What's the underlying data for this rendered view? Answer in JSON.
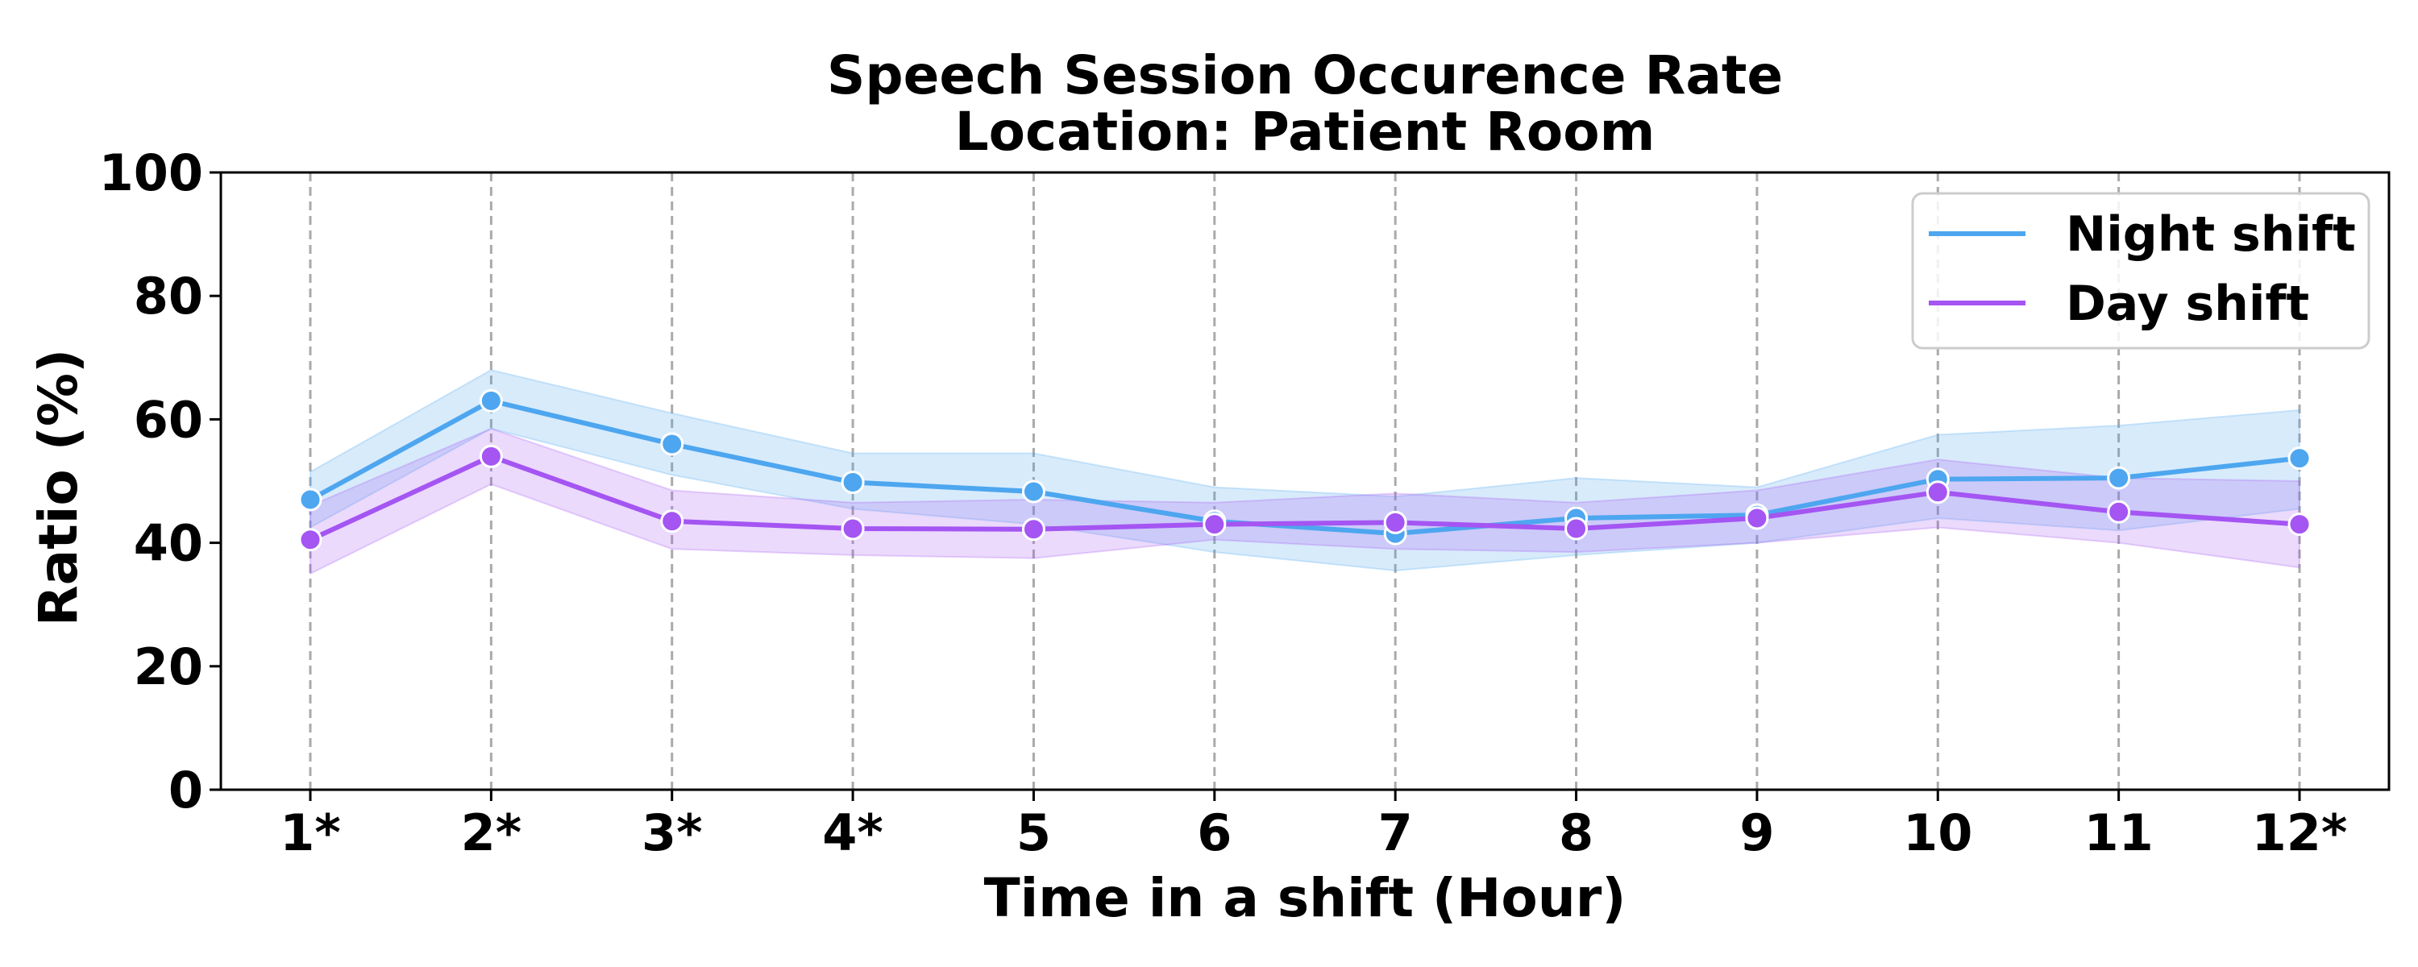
{
  "chart_data": {
    "type": "line",
    "title": [
      "Speech Session Occurence Rate",
      "Location: Patient Room"
    ],
    "xlabel": "Time in a shift (Hour)",
    "ylabel": "Ratio (%)",
    "ylim": [
      0,
      100
    ],
    "yticks": [
      0,
      20,
      40,
      60,
      80,
      100
    ],
    "categories": [
      "1*",
      "2*",
      "3*",
      "4*",
      "5",
      "6",
      "7",
      "8",
      "9",
      "10",
      "11",
      "12*"
    ],
    "grid": "vertical-dashed",
    "legend_position": "top-right",
    "series": [
      {
        "name": "Night shift",
        "color": "#4da6ef",
        "values": [
          47.0,
          63.0,
          56.0,
          49.8,
          48.3,
          43.5,
          41.5,
          44.0,
          44.5,
          50.3,
          50.5,
          53.7
        ],
        "ci_lower": [
          42.5,
          58.5,
          51.0,
          45.5,
          43.0,
          38.5,
          35.5,
          38.0,
          40.0,
          44.0,
          42.0,
          45.5
        ],
        "ci_upper": [
          51.5,
          68.0,
          61.0,
          54.5,
          54.5,
          49.0,
          47.5,
          50.5,
          49.0,
          57.5,
          59.0,
          61.5
        ]
      },
      {
        "name": "Day shift",
        "color": "#a455f2",
        "values": [
          40.5,
          54.0,
          43.5,
          42.3,
          42.2,
          43.0,
          43.3,
          42.3,
          44.0,
          48.2,
          45.0,
          43.0
        ],
        "ci_lower": [
          35.0,
          49.5,
          39.0,
          38.0,
          37.5,
          40.5,
          39.0,
          38.5,
          40.0,
          42.5,
          40.0,
          36.0
        ],
        "ci_upper": [
          46.0,
          58.5,
          48.5,
          46.5,
          47.0,
          46.5,
          48.0,
          46.5,
          48.5,
          53.5,
          50.5,
          50.0
        ]
      }
    ]
  }
}
